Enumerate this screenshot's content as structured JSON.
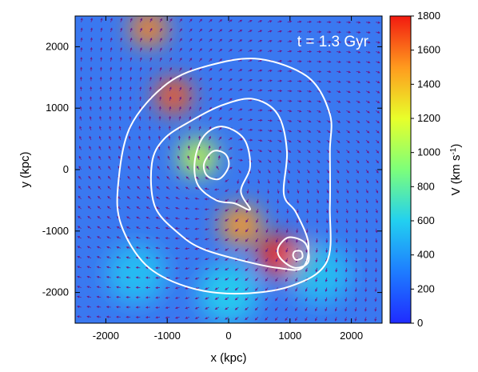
{
  "chart_data": {
    "type": "heatmap",
    "title": "",
    "annotation": "t = 1.3 Gyr",
    "xlabel": "x (kpc)",
    "ylabel": "y (kpc)",
    "xlim": [
      -2500,
      2500
    ],
    "ylim": [
      -2500,
      2500
    ],
    "xticks": [
      -2000,
      -1000,
      0,
      1000,
      2000
    ],
    "yticks": [
      -2000,
      -1000,
      0,
      1000,
      2000
    ],
    "colorbar": {
      "label": "V (km s-1)",
      "label_base": "V (km s",
      "label_exp": "-1",
      "label_close": ")",
      "range": [
        0,
        1800
      ],
      "ticks": [
        0,
        200,
        400,
        600,
        800,
        1000,
        1200,
        1400,
        1600,
        1800
      ],
      "colormap": [
        "#1f2bff",
        "#1e7cff",
        "#22d0f0",
        "#7dff7a",
        "#e8ff2a",
        "#ff9a1e",
        "#f21a10"
      ]
    },
    "background_color": "#3a78f0",
    "field_features": [
      {
        "feature": "tail",
        "x": -1300,
        "y": 2300,
        "v": 1550
      },
      {
        "feature": "tail",
        "x": -900,
        "y": 1200,
        "v": 1650
      },
      {
        "feature": "tail",
        "x": -500,
        "y": 200,
        "v": 1100
      },
      {
        "feature": "shock-front",
        "x": 200,
        "y": -900,
        "v": 1500
      },
      {
        "feature": "shock-front",
        "x": 800,
        "y": -1400,
        "v": 1800
      },
      {
        "feature": "shock-front",
        "x": 1150,
        "y": -1500,
        "v": 1700
      },
      {
        "feature": "bow-arc",
        "x": 0,
        "y": -2000,
        "v": 600
      },
      {
        "feature": "bow-arc",
        "x": -1500,
        "y": -1700,
        "v": 550
      },
      {
        "feature": "bow-arc",
        "x": 1500,
        "y": -1700,
        "v": 550
      }
    ],
    "contours": [
      {
        "level": 1,
        "points": [
          [
            -1800,
            -250
          ],
          [
            -1750,
            -900
          ],
          [
            -1350,
            -1550
          ],
          [
            -700,
            -1900
          ],
          [
            100,
            -2020
          ],
          [
            1000,
            -1900
          ],
          [
            1600,
            -1500
          ],
          [
            1650,
            -600
          ],
          [
            1650,
            300
          ],
          [
            1650,
            900
          ],
          [
            1300,
            1500
          ],
          [
            500,
            1800
          ],
          [
            -300,
            1700
          ],
          [
            -1000,
            1400
          ],
          [
            -1600,
            700
          ]
        ]
      },
      {
        "level": 2,
        "points": [
          [
            -1250,
            100
          ],
          [
            -1200,
            -600
          ],
          [
            -800,
            -1050
          ],
          [
            -400,
            -1300
          ],
          [
            300,
            -1500
          ],
          [
            800,
            -1600
          ],
          [
            1200,
            -1600
          ],
          [
            1300,
            -1200
          ],
          [
            1100,
            -700
          ],
          [
            900,
            -400
          ],
          [
            950,
            300
          ],
          [
            800,
            900
          ],
          [
            400,
            1150
          ],
          [
            -100,
            1050
          ],
          [
            -600,
            800
          ],
          [
            -1050,
            500
          ]
        ]
      },
      {
        "level": 3,
        "points": [
          [
            -550,
            150
          ],
          [
            -500,
            -250
          ],
          [
            -200,
            -500
          ],
          [
            100,
            -550
          ],
          [
            350,
            -650
          ],
          [
            200,
            -350
          ],
          [
            350,
            50
          ],
          [
            250,
            500
          ],
          [
            -100,
            700
          ],
          [
            -400,
            550
          ]
        ]
      },
      {
        "level": 4,
        "points": [
          [
            -400,
            100
          ],
          [
            -350,
            -100
          ],
          [
            -150,
            -150
          ],
          [
            0,
            50
          ],
          [
            -50,
            250
          ],
          [
            -250,
            300
          ]
        ]
      },
      {
        "level": 5,
        "points": [
          [
            800,
            -1350
          ],
          [
            900,
            -1500
          ],
          [
            1100,
            -1600
          ],
          [
            1300,
            -1500
          ],
          [
            1250,
            -1200
          ],
          [
            1000,
            -1100
          ],
          [
            850,
            -1200
          ]
        ]
      },
      {
        "level": 6,
        "points": [
          [
            1050,
            -1400
          ],
          [
            1100,
            -1470
          ],
          [
            1200,
            -1430
          ],
          [
            1180,
            -1330
          ],
          [
            1080,
            -1330
          ]
        ]
      }
    ]
  }
}
